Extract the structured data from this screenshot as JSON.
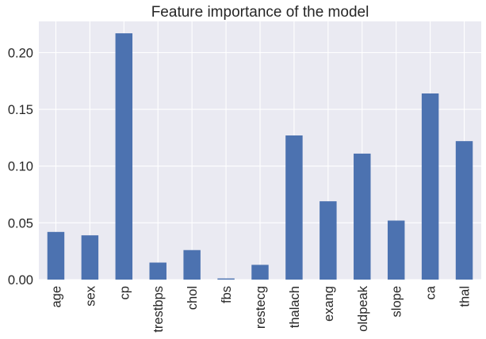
{
  "chart_data": {
    "type": "bar",
    "title": "Feature importance of the model",
    "xlabel": "",
    "ylabel": "",
    "categories": [
      "age",
      "sex",
      "cp",
      "trestbps",
      "chol",
      "fbs",
      "restecg",
      "thalach",
      "exang",
      "oldpeak",
      "slope",
      "ca",
      "thal"
    ],
    "values": [
      0.042,
      0.039,
      0.217,
      0.015,
      0.026,
      0.001,
      0.013,
      0.127,
      0.069,
      0.111,
      0.052,
      0.164,
      0.122
    ],
    "ylim": [
      0,
      0.2275
    ],
    "yticks": [
      0.0,
      0.05,
      0.1,
      0.15,
      0.2
    ],
    "ytick_labels": [
      "0.00",
      "0.05",
      "0.10",
      "0.15",
      "0.20"
    ],
    "grid": true,
    "legend": "none",
    "colors": {
      "bar": "#4c72b0",
      "background": "#eaeaf2",
      "grid": "#ffffff"
    }
  }
}
